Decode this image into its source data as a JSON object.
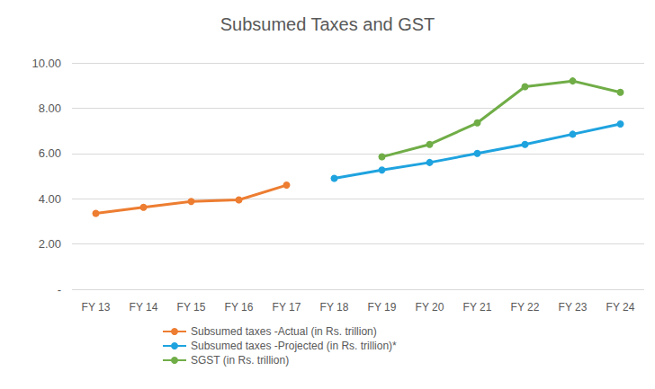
{
  "chart_data": {
    "type": "line",
    "title": "Subsumed Taxes and GST",
    "categories": [
      "FY 13",
      "FY 14",
      "FY 15",
      "FY 16",
      "FY 17",
      "FY 18",
      "FY 19",
      "FY 20",
      "FY 21",
      "FY 22",
      "FY 23",
      "FY 24"
    ],
    "series": [
      {
        "name": "Subsumed taxes -Actual (in Rs. trillion)",
        "color": "#ED7D31",
        "values": [
          3.35,
          3.62,
          3.88,
          3.95,
          4.6,
          null,
          null,
          null,
          null,
          null,
          null,
          null
        ]
      },
      {
        "name": "Subsumed taxes -Projected (in Rs. trillion)*",
        "color": "#1FA3DF",
        "values": [
          null,
          null,
          null,
          null,
          null,
          4.9,
          5.27,
          5.6,
          6.0,
          6.4,
          6.85,
          7.3
        ]
      },
      {
        "name": "SGST (in Rs. trillion)",
        "color": "#70AD47",
        "values": [
          null,
          null,
          null,
          null,
          null,
          null,
          5.85,
          6.4,
          7.35,
          8.95,
          9.2,
          8.7
        ]
      }
    ],
    "ylim": [
      0,
      10
    ],
    "yticks": [
      {
        "value": 0,
        "label": "-"
      },
      {
        "value": 2,
        "label": "2.00"
      },
      {
        "value": 4,
        "label": "4.00"
      },
      {
        "value": 6,
        "label": "6.00"
      },
      {
        "value": 8,
        "label": "8.00"
      },
      {
        "value": 10,
        "label": "10.00"
      }
    ],
    "grid": true,
    "legend": "bottom",
    "marker": "circle"
  }
}
